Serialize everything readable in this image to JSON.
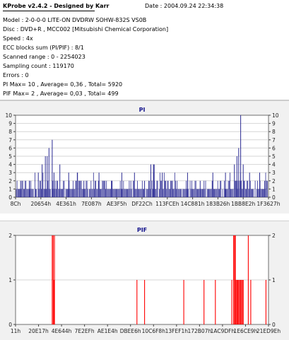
{
  "header": {
    "title": "KProbe v2.4.2 - Designed by Karr",
    "date": "Date : 2004.09.24 22:34:38",
    "lines": [
      "Model : 2-0-0-0 LITE-ON DVDRW SOHW-832S  VS0B",
      "Disc : DVD+R , MCC002 [Mitsubishi Chemical Corporation]",
      "Speed : 4x",
      "ECC blocks sum (PI/PIF) : 8/1",
      "Scanned range : 0 - 2254023",
      "Sampling count : 119170",
      "Errors : 0",
      "PI Max= 10 , Average= 0,36 , Total= 5920",
      "PIF Max= 2 , Average= 0,03 , Total= 499"
    ]
  },
  "chart_data": [
    {
      "type": "bar",
      "title": "PI",
      "ylim": [
        0,
        10
      ],
      "yticks": [
        0,
        1,
        2,
        3,
        4,
        5,
        6,
        7,
        8,
        9,
        10
      ],
      "grid": true,
      "x_tick_labels": [
        "8Ch",
        "20654h",
        "4E361h",
        "7E087h",
        "AE3F5h",
        "DF22Ch",
        "113FCEh",
        "14C881h",
        "183B26h",
        "1BB8E2h",
        "1F3627h"
      ],
      "bar_color": "#2c2c94",
      "peaks": [
        {
          "x_frac": 0.02,
          "value": 2
        },
        {
          "x_frac": 0.055,
          "value": 2
        },
        {
          "x_frac": 0.09,
          "value": 3
        },
        {
          "x_frac": 0.105,
          "value": 4
        },
        {
          "x_frac": 0.118,
          "value": 5
        },
        {
          "x_frac": 0.125,
          "value": 5
        },
        {
          "x_frac": 0.132,
          "value": 6
        },
        {
          "x_frac": 0.145,
          "value": 7
        },
        {
          "x_frac": 0.152,
          "value": 3
        },
        {
          "x_frac": 0.175,
          "value": 4
        },
        {
          "x_frac": 0.21,
          "value": 3
        },
        {
          "x_frac": 0.245,
          "value": 3
        },
        {
          "x_frac": 0.27,
          "value": 2
        },
        {
          "x_frac": 0.33,
          "value": 3
        },
        {
          "x_frac": 0.38,
          "value": 2
        },
        {
          "x_frac": 0.42,
          "value": 3
        },
        {
          "x_frac": 0.47,
          "value": 3
        },
        {
          "x_frac": 0.51,
          "value": 2
        },
        {
          "x_frac": 0.535,
          "value": 4
        },
        {
          "x_frac": 0.545,
          "value": 4
        },
        {
          "x_frac": 0.548,
          "value": 4
        },
        {
          "x_frac": 0.58,
          "value": 3
        },
        {
          "x_frac": 0.62,
          "value": 2
        },
        {
          "x_frac": 0.68,
          "value": 3
        },
        {
          "x_frac": 0.73,
          "value": 2
        },
        {
          "x_frac": 0.78,
          "value": 3
        },
        {
          "x_frac": 0.83,
          "value": 3
        },
        {
          "x_frac": 0.865,
          "value": 4
        },
        {
          "x_frac": 0.875,
          "value": 5
        },
        {
          "x_frac": 0.882,
          "value": 6
        },
        {
          "x_frac": 0.89,
          "value": 10
        },
        {
          "x_frac": 0.9,
          "value": 4
        },
        {
          "x_frac": 0.925,
          "value": 3
        },
        {
          "x_frac": 0.965,
          "value": 3
        },
        {
          "x_frac": 0.985,
          "value": 2
        }
      ]
    },
    {
      "type": "bar",
      "title": "PIF",
      "ylim": [
        0,
        2
      ],
      "yticks": [
        0,
        1,
        2
      ],
      "grid": true,
      "x_tick_labels": [
        "11h",
        "20E17h",
        "4E644h",
        "7E2EFh",
        "AE1E4h",
        "DBEE6h",
        "10C6F8h",
        "13FEF1h",
        "172B07h",
        "1AC9DFh",
        "1E6CE9h",
        "21ED9Eh"
      ],
      "bar_color": "#ff0000",
      "bars": [
        {
          "x_frac": 0.145,
          "value": 2
        },
        {
          "x_frac": 0.149,
          "value": 2
        },
        {
          "x_frac": 0.152,
          "value": 1
        },
        {
          "x_frac": 0.154,
          "value": 2
        },
        {
          "x_frac": 0.48,
          "value": 1
        },
        {
          "x_frac": 0.51,
          "value": 1
        },
        {
          "x_frac": 0.665,
          "value": 1
        },
        {
          "x_frac": 0.745,
          "value": 1
        },
        {
          "x_frac": 0.79,
          "value": 1
        },
        {
          "x_frac": 0.855,
          "value": 1
        },
        {
          "x_frac": 0.862,
          "value": 2
        },
        {
          "x_frac": 0.866,
          "value": 2
        },
        {
          "x_frac": 0.869,
          "value": 2
        },
        {
          "x_frac": 0.872,
          "value": 1
        },
        {
          "x_frac": 0.876,
          "value": 1
        },
        {
          "x_frac": 0.879,
          "value": 1
        },
        {
          "x_frac": 0.882,
          "value": 1
        },
        {
          "x_frac": 0.886,
          "value": 1
        },
        {
          "x_frac": 0.889,
          "value": 1
        },
        {
          "x_frac": 0.893,
          "value": 1
        },
        {
          "x_frac": 0.897,
          "value": 1
        },
        {
          "x_frac": 0.9,
          "value": 1
        },
        {
          "x_frac": 0.92,
          "value": 2
        },
        {
          "x_frac": 0.93,
          "value": 1
        },
        {
          "x_frac": 0.99,
          "value": 1
        }
      ]
    }
  ]
}
